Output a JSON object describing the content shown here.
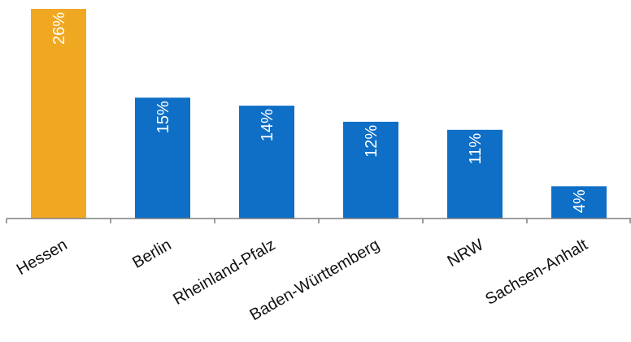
{
  "chart_data": {
    "type": "bar",
    "categories": [
      "Hessen",
      "Berlin",
      "Rheinland-Pfalz",
      "Baden-Württemberg",
      "NRW",
      "Sachsen-Anhalt"
    ],
    "values": [
      26,
      15,
      14,
      12,
      11,
      4
    ],
    "data_labels": [
      "26%",
      "15%",
      "14%",
      "12%",
      "11%",
      "4%"
    ],
    "unit": "%",
    "ylim": [
      0,
      26
    ],
    "grid": false,
    "legend": "none",
    "colors": {
      "highlight": "#F0A823",
      "default": "#0F6FC6",
      "axis": "#7F7F7F"
    },
    "highlight_index": 0
  }
}
